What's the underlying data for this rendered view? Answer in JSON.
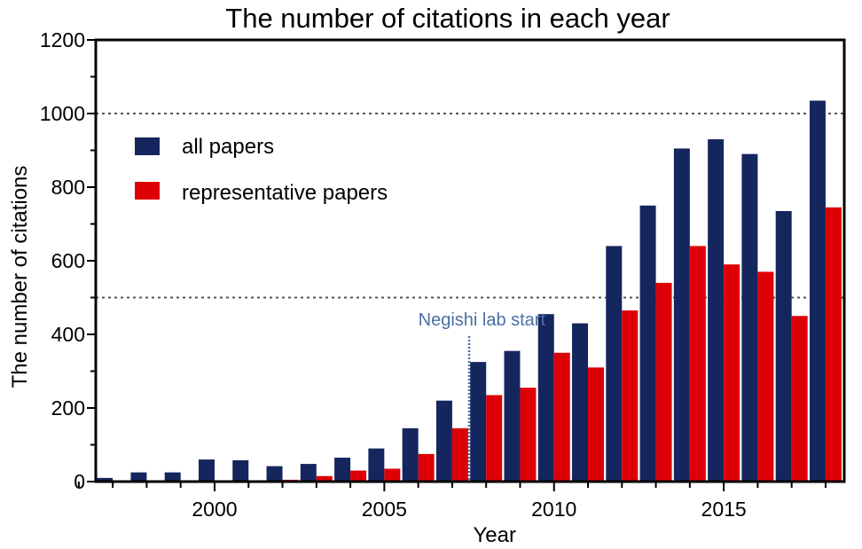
{
  "chart_data": {
    "type": "bar",
    "title": "The number of citations in each year",
    "xlabel": "Year",
    "ylabel": "The number of citations",
    "x": [
      1996,
      1997,
      1998,
      1999,
      2000,
      2001,
      2002,
      2003,
      2004,
      2005,
      2006,
      2007,
      2008,
      2009,
      2010,
      2011,
      2012,
      2013,
      2014,
      2015,
      2016,
      2017,
      2018
    ],
    "series": [
      {
        "name": "all papers",
        "color": "#15265e",
        "values": [
          0,
          10,
          25,
          25,
          60,
          58,
          42,
          48,
          65,
          90,
          145,
          220,
          325,
          355,
          455,
          430,
          640,
          750,
          905,
          930,
          890,
          735,
          1035
        ]
      },
      {
        "name": "representative papers",
        "color": "#dd0006",
        "values": [
          0,
          0,
          0,
          0,
          0,
          0,
          5,
          15,
          30,
          35,
          75,
          145,
          235,
          255,
          350,
          310,
          465,
          540,
          640,
          590,
          570,
          450,
          745
        ]
      }
    ],
    "ylim": [
      0,
      1200
    ],
    "yticks": [
      0,
      200,
      400,
      600,
      800,
      1000,
      1200
    ],
    "xticks": [
      2000,
      2005,
      2010,
      2015
    ],
    "reference_lines_y": [
      500,
      1000
    ],
    "legend_position": "top-left",
    "annotation": {
      "text": "Negishi lab start",
      "x": 2007.5,
      "y_top": 400,
      "color": "#4a6fa5"
    }
  }
}
